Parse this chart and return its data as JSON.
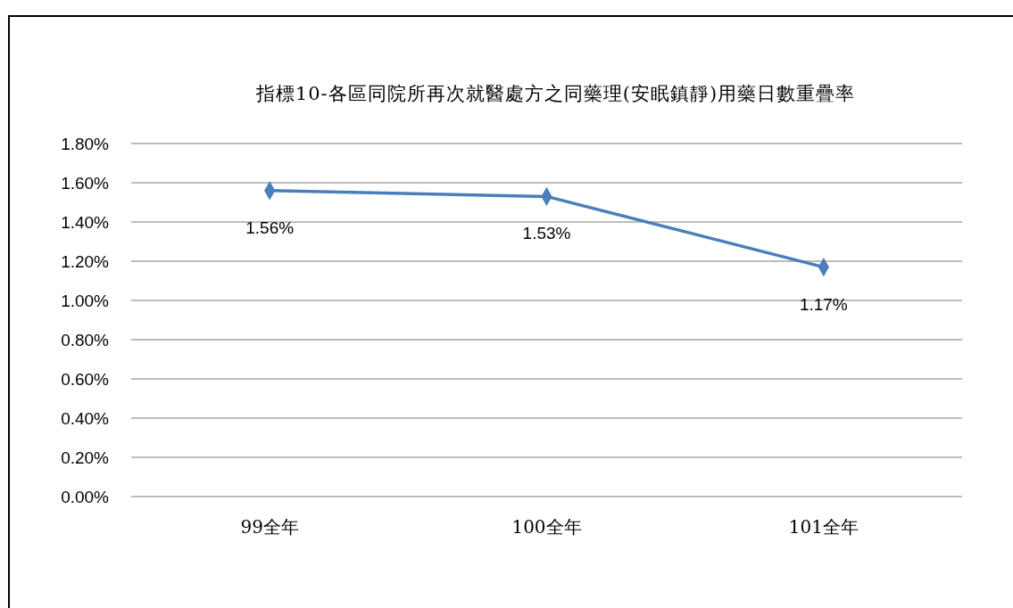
{
  "chart_data": {
    "type": "line",
    "title": "指標10-各區同院所再次就醫處方之同藥理(安眠鎮靜)用藥日數重疊率",
    "categories": [
      "99全年",
      "100全年",
      "101全年"
    ],
    "series": [
      {
        "color": "#4a7ebb",
        "values": [
          1.56,
          1.53,
          1.17
        ],
        "value_labels": [
          "1.56%",
          "1.53%",
          "1.17%"
        ]
      }
    ],
    "ylim": [
      0,
      1.8
    ],
    "yticks": [
      {
        "value": 0,
        "label": "0.00%"
      },
      {
        "value": 0.2,
        "label": "0.20%"
      },
      {
        "value": 0.4,
        "label": "0.40%"
      },
      {
        "value": 0.6,
        "label": "0.60%"
      },
      {
        "value": 0.8,
        "label": "0.80%"
      },
      {
        "value": 1.0,
        "label": "1.00%"
      },
      {
        "value": 1.2,
        "label": "1.20%"
      },
      {
        "value": 1.4,
        "label": "1.40%"
      },
      {
        "value": 1.6,
        "label": "1.60%"
      },
      {
        "value": 1.8,
        "label": "1.80%"
      }
    ],
    "grid": "y",
    "marker": "diamond",
    "line_style": "solid"
  }
}
